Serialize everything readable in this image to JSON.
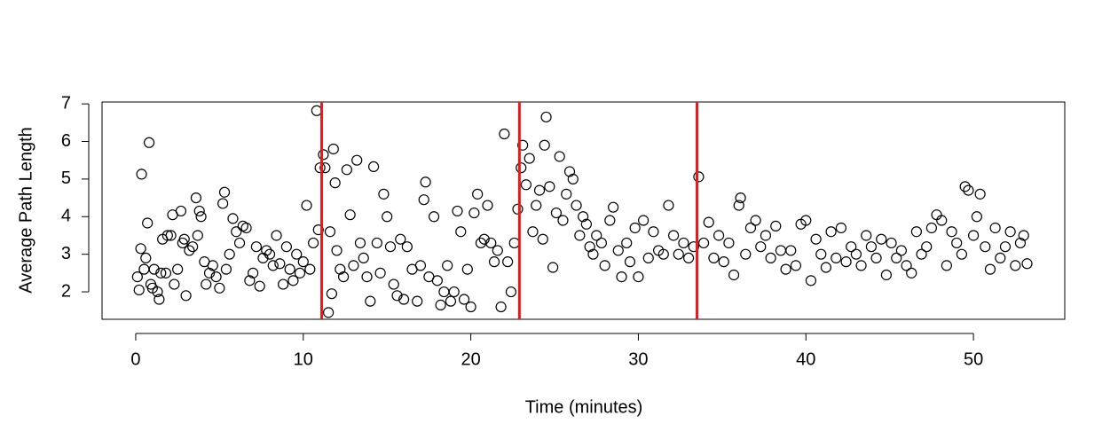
{
  "chart_data": {
    "type": "scatter",
    "xlabel": "Time (minutes)",
    "ylabel": "Average Path Length",
    "xlim": [
      -2.01,
      55.45
    ],
    "ylim": [
      1.27,
      7.05
    ],
    "xticks": [
      0,
      10,
      20,
      30,
      40,
      50
    ],
    "yticks": [
      2,
      3,
      4,
      5,
      6,
      7
    ],
    "color": "#000000",
    "vlines": [
      11.1,
      22.9,
      33.5
    ],
    "vline_color": "#e41a1c",
    "x": [
      0.1,
      0.2,
      0.3,
      0.35,
      0.5,
      0.6,
      0.7,
      0.8,
      0.9,
      1.0,
      1.1,
      1.3,
      1.4,
      1.5,
      1.6,
      1.8,
      1.9,
      2.1,
      2.2,
      2.3,
      2.5,
      2.7,
      2.8,
      2.9,
      3.0,
      3.2,
      3.4,
      3.6,
      3.7,
      3.8,
      3.9,
      4.1,
      4.2,
      4.4,
      4.6,
      4.8,
      5.0,
      5.2,
      5.3,
      5.4,
      5.6,
      5.8,
      6.0,
      6.2,
      6.4,
      6.6,
      6.8,
      7.0,
      7.2,
      7.4,
      7.6,
      7.8,
      8.0,
      8.2,
      8.4,
      8.6,
      8.8,
      9.0,
      9.2,
      9.4,
      9.6,
      9.8,
      10.0,
      10.2,
      10.4,
      10.6,
      10.8,
      10.9,
      11.0,
      11.2,
      11.3,
      11.5,
      11.6,
      11.7,
      11.8,
      11.9,
      12.0,
      12.2,
      12.4,
      12.6,
      12.8,
      13.0,
      13.2,
      13.4,
      13.6,
      13.8,
      14.0,
      14.2,
      14.4,
      14.6,
      14.8,
      15.0,
      15.2,
      15.4,
      15.6,
      15.8,
      16.0,
      16.2,
      16.5,
      16.8,
      17.0,
      17.2,
      17.3,
      17.5,
      17.8,
      18.0,
      18.2,
      18.4,
      18.6,
      18.8,
      19.0,
      19.2,
      19.4,
      19.6,
      19.8,
      20.0,
      20.2,
      20.4,
      20.6,
      20.8,
      21.0,
      21.2,
      21.4,
      21.6,
      21.8,
      22.0,
      22.2,
      22.4,
      22.6,
      22.8,
      23.0,
      23.1,
      23.3,
      23.5,
      23.7,
      23.9,
      24.1,
      24.3,
      24.4,
      24.5,
      24.7,
      24.9,
      25.1,
      25.3,
      25.5,
      25.7,
      25.9,
      26.1,
      26.3,
      26.5,
      26.7,
      26.9,
      27.1,
      27.3,
      27.5,
      27.8,
      28.0,
      28.3,
      28.5,
      28.8,
      29.0,
      29.3,
      29.5,
      29.8,
      30.0,
      30.3,
      30.6,
      30.9,
      31.2,
      31.5,
      31.8,
      32.1,
      32.4,
      32.7,
      33.0,
      33.3,
      33.6,
      33.9,
      34.2,
      34.5,
      34.8,
      35.1,
      35.4,
      35.7,
      36.0,
      36.1,
      36.4,
      36.7,
      37.0,
      37.3,
      37.6,
      37.9,
      38.2,
      38.5,
      38.8,
      39.1,
      39.4,
      39.7,
      40.0,
      40.3,
      40.6,
      40.9,
      41.2,
      41.5,
      41.8,
      42.1,
      42.4,
      42.7,
      43.0,
      43.3,
      43.6,
      43.9,
      44.2,
      44.5,
      44.8,
      45.1,
      45.4,
      45.7,
      46.0,
      46.3,
      46.6,
      46.9,
      47.2,
      47.5,
      47.8,
      48.1,
      48.4,
      48.7,
      49.0,
      49.3,
      49.5,
      49.7,
      50.0,
      50.2,
      50.4,
      50.7,
      51.0,
      51.3,
      51.6,
      51.9,
      52.2,
      52.5,
      52.8,
      53.0,
      53.2
    ],
    "values": [
      2.4,
      2.05,
      3.15,
      5.13,
      2.6,
      2.9,
      3.83,
      5.97,
      2.2,
      2.1,
      2.6,
      2.0,
      1.8,
      2.5,
      3.4,
      2.5,
      3.5,
      3.5,
      4.05,
      2.2,
      2.6,
      4.15,
      3.3,
      3.4,
      1.9,
      3.1,
      3.2,
      4.5,
      3.5,
      4.15,
      4.0,
      2.8,
      2.2,
      2.5,
      2.7,
      2.4,
      2.1,
      4.35,
      4.65,
      2.6,
      3.0,
      3.95,
      3.6,
      3.3,
      3.75,
      3.7,
      2.3,
      2.5,
      3.2,
      2.15,
      2.9,
      3.1,
      3.0,
      2.7,
      3.5,
      2.75,
      2.2,
      3.2,
      2.6,
      2.3,
      3.0,
      2.5,
      2.8,
      4.3,
      2.6,
      3.3,
      6.82,
      3.65,
      5.3,
      5.65,
      5.3,
      1.45,
      3.6,
      1.95,
      5.8,
      4.9,
      3.1,
      2.6,
      2.4,
      5.25,
      4.05,
      2.7,
      5.5,
      3.3,
      2.9,
      2.4,
      1.75,
      5.33,
      3.3,
      2.5,
      4.6,
      4.0,
      3.2,
      2.2,
      1.9,
      3.4,
      1.8,
      3.2,
      2.6,
      1.75,
      2.7,
      4.45,
      4.92,
      2.4,
      4.0,
      2.3,
      1.65,
      2.0,
      2.7,
      1.75,
      2.0,
      4.15,
      3.6,
      1.8,
      2.6,
      1.6,
      4.1,
      4.6,
      3.3,
      3.4,
      4.3,
      3.3,
      2.8,
      3.1,
      1.6,
      6.2,
      2.8,
      2.0,
      3.3,
      4.2,
      5.3,
      5.9,
      4.85,
      5.55,
      3.6,
      4.3,
      4.7,
      3.4,
      5.9,
      6.65,
      4.8,
      2.65,
      4.1,
      5.6,
      3.9,
      4.6,
      5.2,
      5.0,
      4.3,
      3.5,
      4.0,
      3.8,
      3.2,
      3.0,
      3.5,
      3.3,
      2.7,
      3.9,
      4.25,
      3.1,
      2.4,
      3.3,
      2.8,
      3.7,
      2.4,
      3.9,
      2.9,
      3.6,
      3.1,
      3.0,
      4.3,
      3.5,
      3.0,
      3.3,
      2.9,
      3.2,
      5.06,
      3.3,
      3.85,
      2.9,
      3.5,
      2.8,
      3.3,
      2.45,
      4.3,
      4.5,
      3.0,
      3.7,
      3.9,
      3.2,
      3.5,
      2.9,
      3.75,
      3.1,
      2.6,
      3.1,
      2.7,
      3.8,
      3.9,
      2.3,
      3.4,
      3.0,
      2.65,
      3.6,
      2.9,
      3.7,
      2.8,
      3.2,
      3.0,
      2.7,
      3.5,
      3.2,
      2.9,
      3.4,
      2.45,
      3.3,
      2.9,
      3.1,
      2.7,
      2.5,
      3.6,
      3.0,
      3.2,
      3.7,
      4.05,
      3.9,
      2.7,
      3.6,
      3.3,
      3.0,
      4.8,
      4.7,
      3.5,
      4.0,
      4.6,
      3.2,
      2.6,
      3.7,
      2.9,
      3.2,
      3.6,
      2.7,
      3.3,
      3.5,
      2.75
    ]
  }
}
